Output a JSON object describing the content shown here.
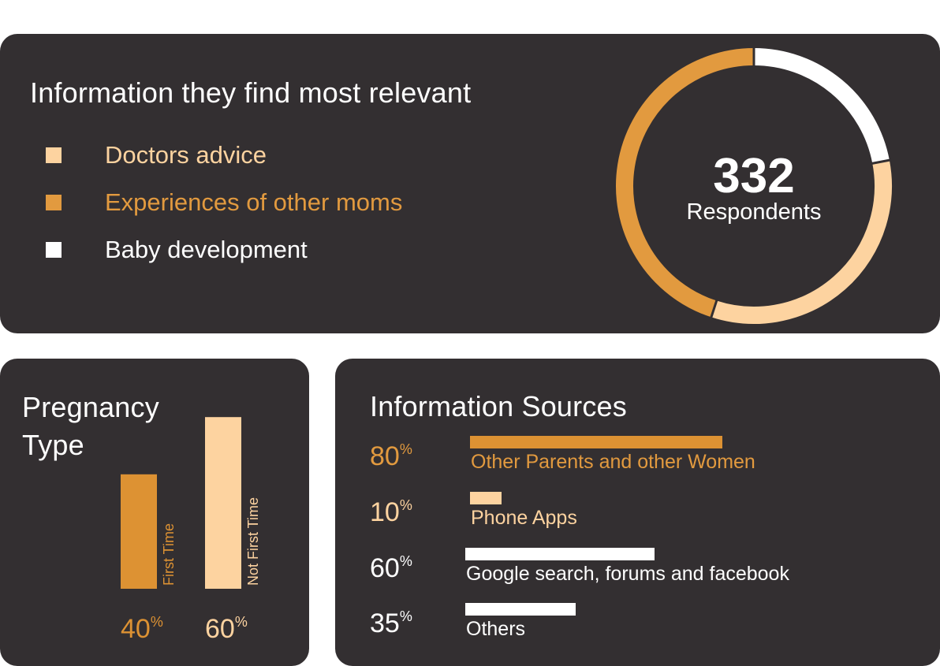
{
  "relevance": {
    "title": "Information they find most relevant",
    "legend": [
      {
        "label": "Doctors advice",
        "color": "#fdd3a0",
        "label_color": "#fdd3a0"
      },
      {
        "label": "Experiences of other moms",
        "color": "#e29a3f",
        "label_color": "#e29a3f"
      },
      {
        "label": "Baby development",
        "color": "#ffffff",
        "label_color": "#ffffff"
      }
    ],
    "center_value": "332",
    "center_label": "Respondents"
  },
  "chart_data": [
    {
      "type": "pie",
      "variant": "donut",
      "categories": [
        "Baby development",
        "Doctors advice",
        "Experiences of other moms"
      ],
      "values": [
        22,
        33,
        45
      ],
      "colors": [
        "#ffffff",
        "#fdd3a0",
        "#e29a3f"
      ],
      "start": "top",
      "direction": "clockwise"
    },
    {
      "type": "bar",
      "title": "Pregnancy Type",
      "categories": [
        "First Time",
        "Not First Time"
      ],
      "values": [
        40,
        60
      ],
      "value_labels": [
        "40",
        "60"
      ],
      "unit": "%",
      "colors": [
        "#dd9233",
        "#fdd3a0"
      ],
      "orientation": "vertical"
    },
    {
      "type": "bar",
      "title": "Information Sources",
      "categories": [
        "Other Parents and other Women",
        "Phone Apps",
        "Google search, forums and facebook",
        "Others"
      ],
      "values": [
        80,
        10,
        60,
        35
      ],
      "value_labels": [
        "80",
        "10",
        "60",
        "35"
      ],
      "unit": "%",
      "bar_colors": [
        "#dd9233",
        "#fdd3a0",
        "#ffffff",
        "#ffffff"
      ],
      "label_colors": [
        "#e29a3f",
        "#fdd3a0",
        "#ffffff",
        "#ffffff"
      ],
      "value_colors": [
        "#e29a3f",
        "#fdd3a0",
        "#ffffff",
        "#ffffff"
      ],
      "orientation": "horizontal"
    }
  ]
}
